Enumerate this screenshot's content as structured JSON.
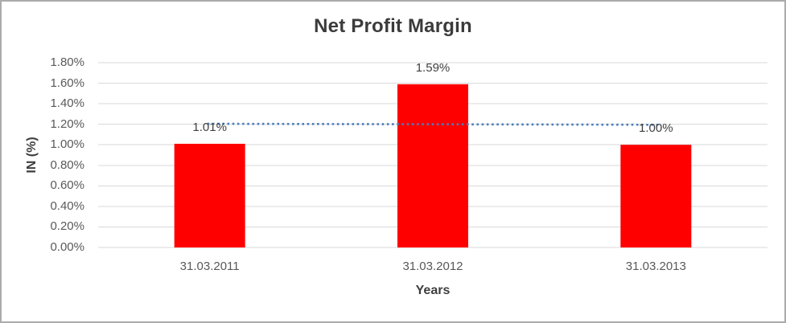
{
  "window": {
    "background": "#ffffff",
    "border_color": "#ababab"
  },
  "chart_data": {
    "type": "bar",
    "title": "Net Profit Margin",
    "xlabel": "Years",
    "ylabel": "IN (%)",
    "categories": [
      "31.03.2011",
      "31.03.2012",
      "31.03.2013"
    ],
    "series": [
      {
        "name": "Net Profit Margin",
        "values": [
          1.01,
          1.59,
          1.0
        ]
      }
    ],
    "data_labels": [
      "1.01%",
      "1.59%",
      "1.00%"
    ],
    "ylim": [
      0,
      1.8
    ],
    "y_tick_labels": [
      "0.00%",
      "0.20%",
      "0.40%",
      "0.60%",
      "0.80%",
      "1.00%",
      "1.20%",
      "1.40%",
      "1.60%",
      "1.80%"
    ],
    "y_tick_values": [
      0,
      0.2,
      0.4,
      0.6,
      0.8,
      1.0,
      1.2,
      1.4,
      1.6,
      1.8
    ],
    "grid": true,
    "legend": "none",
    "bar_color": "#ff0000",
    "gridline_color": "#d9d9d9",
    "tick_label_color": "#595959",
    "data_label_color": "#404040",
    "title_color": "#3b3b3b",
    "axis_title_color": "#3f3f3f",
    "trendline": {
      "type": "linear",
      "style": "dotted",
      "color": "#4a7ebb",
      "start_value": 1.205,
      "end_value": 1.195
    }
  }
}
